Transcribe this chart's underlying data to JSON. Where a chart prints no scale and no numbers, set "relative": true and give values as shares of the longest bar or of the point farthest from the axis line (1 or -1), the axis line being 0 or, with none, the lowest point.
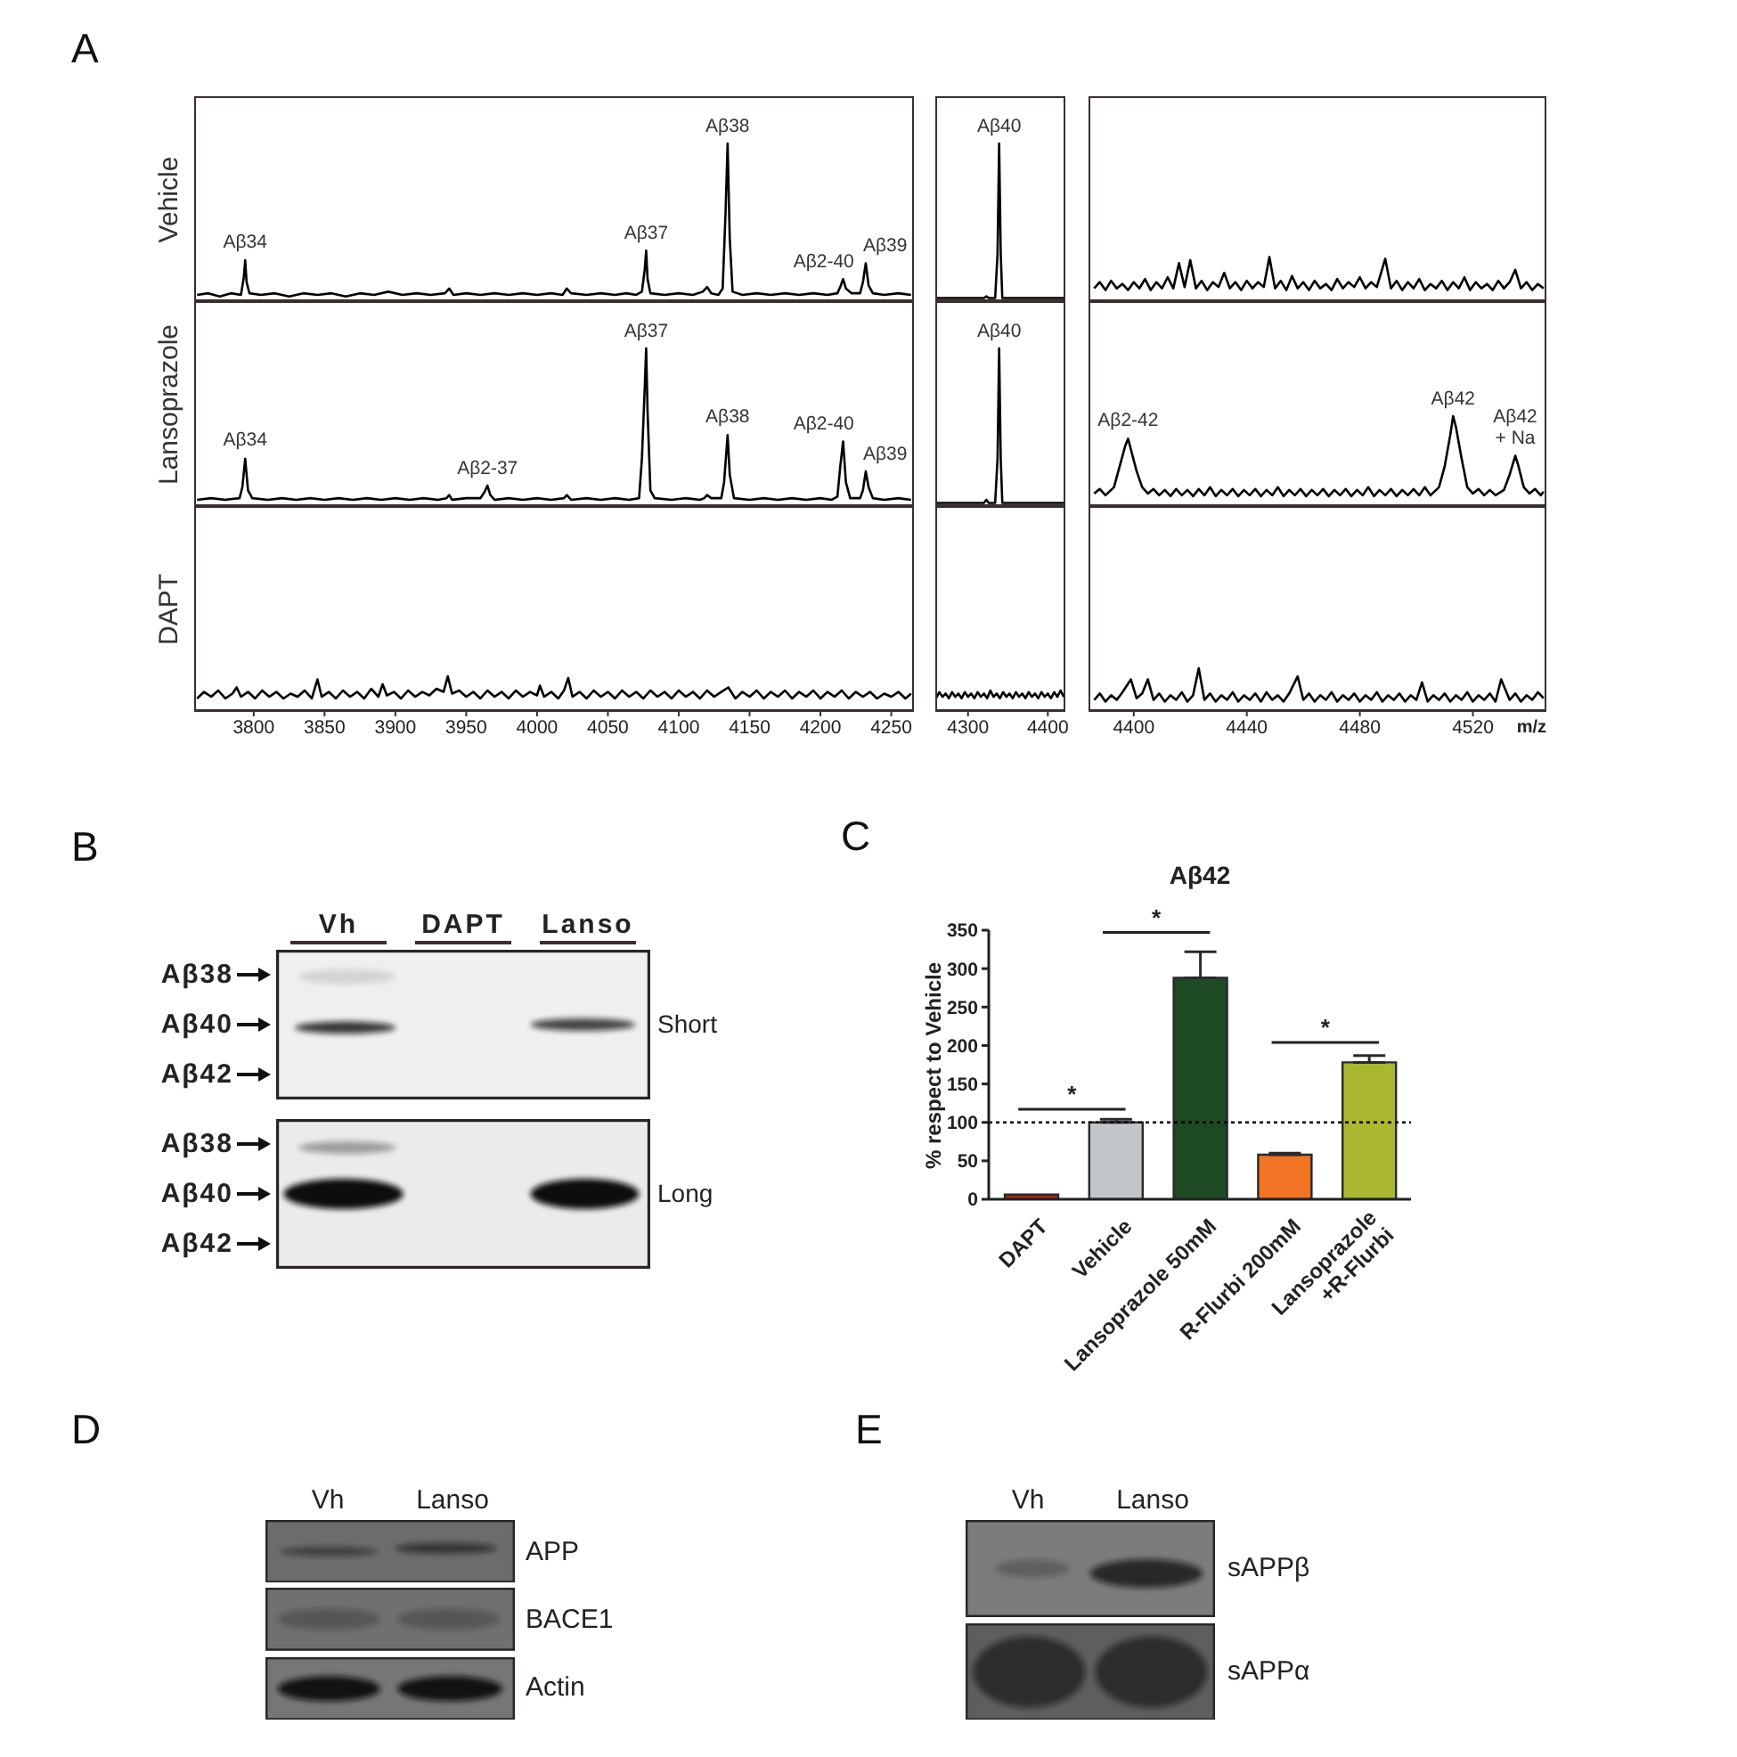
{
  "chart_data": [
    {
      "type": "line",
      "relative": true,
      "color": "#000000",
      "ylabel": "Vehicle",
      "tick_labels": false,
      "xlim": [
        3758,
        4266
      ],
      "x": [
        3760,
        3768,
        3776,
        3784,
        3791,
        3793,
        3794,
        3795,
        3797,
        3805,
        3815,
        3825,
        3835,
        3845,
        3855,
        3865,
        3875,
        3885,
        3895,
        3905,
        3915,
        3925,
        3935,
        3938,
        3941,
        3950,
        3960,
        3970,
        3980,
        3990,
        4000,
        4010,
        4018,
        4021,
        4024,
        4035,
        4045,
        4055,
        4063,
        4070,
        4074,
        4076,
        4077,
        4078,
        4080,
        4090,
        4100,
        4110,
        4117,
        4120,
        4123,
        4128,
        4131,
        4133,
        4134.5,
        4136,
        4138,
        4145,
        4155,
        4165,
        4175,
        4185,
        4195,
        4205,
        4212,
        4214,
        4216,
        4218,
        4222,
        4228,
        4230,
        4232,
        4234,
        4237,
        4245,
        4255,
        4264
      ],
      "values": [
        0.04,
        0.05,
        0.03,
        0.05,
        0.04,
        0.15,
        0.26,
        0.12,
        0.05,
        0.04,
        0.05,
        0.03,
        0.05,
        0.04,
        0.05,
        0.03,
        0.05,
        0.04,
        0.06,
        0.04,
        0.05,
        0.04,
        0.05,
        0.08,
        0.04,
        0.05,
        0.04,
        0.05,
        0.04,
        0.05,
        0.04,
        0.05,
        0.04,
        0.08,
        0.05,
        0.04,
        0.05,
        0.04,
        0.05,
        0.04,
        0.06,
        0.2,
        0.32,
        0.14,
        0.05,
        0.04,
        0.05,
        0.04,
        0.06,
        0.09,
        0.05,
        0.04,
        0.08,
        0.55,
        1.0,
        0.4,
        0.06,
        0.04,
        0.05,
        0.04,
        0.05,
        0.04,
        0.05,
        0.04,
        0.05,
        0.09,
        0.14,
        0.08,
        0.05,
        0.05,
        0.12,
        0.24,
        0.1,
        0.05,
        0.04,
        0.05,
        0.04
      ],
      "annotations": [
        "A",
        {
          "text": "Aβ34",
          "x": 3794,
          "y": 0.26
        },
        {
          "text": "Aβ37",
          "x": 4077,
          "y": 0.32
        },
        {
          "text": "Aβ38",
          "x": 4134.5,
          "y": 1.0
        },
        {
          "text": "Aβ2-40",
          "x": 4216,
          "y": 0.14
        },
        {
          "text": "Aβ39",
          "x": 4232,
          "y": 0.24
        }
      ]
    },
    {
      "type": "line",
      "relative": true,
      "color": "#000000",
      "tick_labels": false,
      "xlim": [
        4259,
        4422
      ],
      "x": [
        4260,
        4270,
        4280,
        4290,
        4300,
        4310,
        4320,
        4323,
        4326,
        4334,
        4337,
        4339,
        4341,
        4343,
        4350,
        4360,
        4370,
        4380,
        4390,
        4400,
        4410,
        4420
      ],
      "values": [
        0.02,
        0.02,
        0.02,
        0.02,
        0.02,
        0.02,
        0.02,
        0.03,
        0.02,
        0.02,
        0.3,
        1.0,
        0.3,
        0.02,
        0.02,
        0.02,
        0.02,
        0.02,
        0.02,
        0.02,
        0.02,
        0.02
      ],
      "annotations": [
        {
          "text": "Aβ40",
          "x": 4339,
          "y": 1.0
        }
      ]
    },
    {
      "type": "line",
      "relative": true,
      "color": "#000000",
      "tick_labels": false,
      "xlim": [
        4384,
        4546
      ],
      "x": [
        4386,
        4388,
        4390,
        4392,
        4394,
        4396,
        4398,
        4400,
        4402,
        4404,
        4406,
        4408,
        4410,
        4412,
        4414,
        4416,
        4418,
        4420,
        4422,
        4424,
        4426,
        4428,
        4430,
        4432,
        4434,
        4436,
        4438,
        4440,
        4442,
        4444,
        4446,
        4448,
        4450,
        4452,
        4454,
        4456,
        4458,
        4460,
        4462,
        4464,
        4466,
        4468,
        4470,
        4472,
        4474,
        4476,
        4478,
        4480,
        4482,
        4484,
        4486,
        4489,
        4491,
        4493,
        4495,
        4497,
        4499,
        4501,
        4503,
        4505,
        4507,
        4509,
        4511,
        4513,
        4515,
        4517,
        4519,
        4521,
        4523,
        4525,
        4527,
        4529,
        4531,
        4533,
        4535,
        4537,
        4539,
        4541,
        4543,
        4545
      ],
      "values": [
        0.29,
        0.43,
        0.25,
        0.46,
        0.29,
        0.39,
        0.25,
        0.43,
        0.29,
        0.5,
        0.25,
        0.43,
        0.29,
        0.54,
        0.29,
        0.86,
        0.32,
        0.93,
        0.29,
        0.46,
        0.25,
        0.43,
        0.32,
        0.64,
        0.29,
        0.43,
        0.25,
        0.46,
        0.29,
        0.43,
        0.32,
        1.0,
        0.29,
        0.46,
        0.25,
        0.57,
        0.29,
        0.43,
        0.25,
        0.46,
        0.29,
        0.39,
        0.25,
        0.5,
        0.29,
        0.43,
        0.32,
        0.54,
        0.29,
        0.43,
        0.32,
        0.96,
        0.29,
        0.46,
        0.25,
        0.43,
        0.29,
        0.5,
        0.25,
        0.39,
        0.29,
        0.46,
        0.25,
        0.43,
        0.29,
        0.54,
        0.25,
        0.43,
        0.29,
        0.39,
        0.25,
        0.46,
        0.29,
        0.43,
        0.71,
        0.29,
        0.43,
        0.25,
        0.39,
        0.29
      ]
    },
    {
      "type": "line",
      "relative": true,
      "color": "#000000",
      "ylabel": "Lansoprazole",
      "tick_labels": false,
      "xlim": [
        3758,
        4266
      ],
      "x": [
        3760,
        3770,
        3780,
        3790,
        3792,
        3794,
        3796,
        3799,
        3810,
        3820,
        3830,
        3840,
        3850,
        3860,
        3870,
        3880,
        3890,
        3900,
        3910,
        3920,
        3930,
        3936,
        3938,
        3940,
        3950,
        3960,
        3963,
        3965,
        3967,
        3970,
        3980,
        3990,
        4000,
        4010,
        4019,
        4021,
        4024,
        4035,
        4045,
        4055,
        4065,
        4072,
        4074,
        4076,
        4077,
        4078,
        4080,
        4083,
        4095,
        4105,
        4115,
        4118,
        4120,
        4123,
        4130,
        4132,
        4134.5,
        4136,
        4139,
        4150,
        4160,
        4170,
        4180,
        4190,
        4200,
        4208,
        4212,
        4214,
        4216,
        4218,
        4221,
        4228,
        4230,
        4232,
        4234,
        4237,
        4245,
        4255,
        4264
      ],
      "values": [
        0.04,
        0.05,
        0.04,
        0.05,
        0.12,
        0.3,
        0.1,
        0.05,
        0.04,
        0.05,
        0.04,
        0.05,
        0.04,
        0.05,
        0.04,
        0.05,
        0.04,
        0.05,
        0.04,
        0.05,
        0.04,
        0.05,
        0.07,
        0.04,
        0.05,
        0.05,
        0.09,
        0.13,
        0.07,
        0.04,
        0.05,
        0.04,
        0.05,
        0.04,
        0.05,
        0.07,
        0.04,
        0.05,
        0.04,
        0.05,
        0.04,
        0.05,
        0.3,
        0.75,
        1.0,
        0.6,
        0.1,
        0.05,
        0.04,
        0.05,
        0.04,
        0.05,
        0.07,
        0.05,
        0.05,
        0.15,
        0.45,
        0.2,
        0.05,
        0.04,
        0.05,
        0.04,
        0.05,
        0.04,
        0.05,
        0.04,
        0.06,
        0.25,
        0.41,
        0.15,
        0.05,
        0.05,
        0.1,
        0.22,
        0.12,
        0.05,
        0.04,
        0.05,
        0.04
      ],
      "annotations": [
        {
          "text": "Aβ34",
          "x": 3794,
          "y": 0.3
        },
        {
          "text": "Aβ2-37",
          "x": 3965,
          "y": 0.13
        },
        {
          "text": "Aβ37",
          "x": 4077,
          "y": 1.0
        },
        {
          "text": "Aβ38",
          "x": 4134.5,
          "y": 0.45
        },
        {
          "text": "Aβ2-40",
          "x": 4216,
          "y": 0.41
        },
        {
          "text": "Aβ39",
          "x": 4232,
          "y": 0.22
        }
      ]
    },
    {
      "type": "line",
      "relative": true,
      "color": "#000000",
      "tick_labels": false,
      "xlim": [
        4259,
        4422
      ],
      "x": [
        4260,
        4270,
        4280,
        4290,
        4300,
        4310,
        4320,
        4323,
        4326,
        4334,
        4337,
        4339,
        4341,
        4343,
        4350,
        4360,
        4370,
        4380,
        4390,
        4400,
        4410,
        4420
      ],
      "values": [
        0.02,
        0.02,
        0.02,
        0.02,
        0.02,
        0.02,
        0.02,
        0.04,
        0.02,
        0.02,
        0.3,
        1.0,
        0.3,
        0.02,
        0.02,
        0.02,
        0.02,
        0.02,
        0.02,
        0.02,
        0.02,
        0.02
      ],
      "annotations": [
        {
          "text": "Aβ40",
          "x": 4339,
          "y": 1.0
        }
      ]
    },
    {
      "type": "line",
      "relative": true,
      "color": "#000000",
      "tick_labels": false,
      "xlim": [
        4384,
        4546
      ],
      "x": [
        4386,
        4388,
        4390,
        4392,
        4393,
        4395,
        4397,
        4398,
        4399,
        4401,
        4403,
        4405,
        4407,
        4409,
        4411,
        4413,
        4415,
        4417,
        4419,
        4421,
        4423,
        4425,
        4427,
        4429,
        4431,
        4433,
        4435,
        4437,
        4439,
        4441,
        4443,
        4445,
        4447,
        4449,
        4451,
        4453,
        4455,
        4457,
        4459,
        4461,
        4463,
        4465,
        4467,
        4469,
        4471,
        4473,
        4475,
        4477,
        4479,
        4481,
        4483,
        4485,
        4487,
        4489,
        4491,
        4493,
        4495,
        4497,
        4499,
        4501,
        4503,
        4505,
        4508,
        4510,
        4512,
        4513,
        4514,
        4516,
        4518,
        4520,
        4522,
        4524,
        4526,
        4528,
        4531,
        4533,
        4535,
        4536,
        4538,
        4540,
        4542,
        4544,
        4545
      ],
      "values": [
        0.14,
        0.19,
        0.12,
        0.18,
        0.21,
        0.44,
        0.67,
        0.75,
        0.63,
        0.39,
        0.21,
        0.14,
        0.19,
        0.12,
        0.18,
        0.11,
        0.19,
        0.12,
        0.18,
        0.11,
        0.19,
        0.12,
        0.21,
        0.11,
        0.18,
        0.12,
        0.19,
        0.11,
        0.18,
        0.12,
        0.19,
        0.11,
        0.18,
        0.12,
        0.21,
        0.11,
        0.18,
        0.12,
        0.19,
        0.11,
        0.18,
        0.12,
        0.19,
        0.11,
        0.18,
        0.12,
        0.19,
        0.11,
        0.18,
        0.12,
        0.21,
        0.11,
        0.18,
        0.12,
        0.19,
        0.11,
        0.18,
        0.12,
        0.19,
        0.12,
        0.21,
        0.12,
        0.21,
        0.44,
        0.79,
        1.0,
        0.88,
        0.53,
        0.21,
        0.14,
        0.19,
        0.12,
        0.18,
        0.12,
        0.18,
        0.35,
        0.56,
        0.46,
        0.21,
        0.14,
        0.19,
        0.12,
        0.16
      ],
      "annotations": [
        {
          "text": "Aβ2-42",
          "x": 4398,
          "y": 0.75
        },
        {
          "text": "Aβ42",
          "x": 4513,
          "y": 1.0
        },
        {
          "text": "Aβ42\n+ Na",
          "x": 4535,
          "y": 0.56
        }
      ]
    },
    {
      "type": "line",
      "relative": true,
      "color": "#000000",
      "ylabel": "DAPT",
      "tick_labels": "x",
      "xlim": [
        3758,
        4266
      ],
      "xticks": [
        3800,
        3850,
        3900,
        3950,
        4000,
        4050,
        4100,
        4150,
        4200,
        4250
      ],
      "x": [
        3760,
        3765,
        3770,
        3775,
        3780,
        3785,
        3788,
        3791,
        3796,
        3801,
        3806,
        3811,
        3816,
        3821,
        3826,
        3831,
        3836,
        3841,
        3845,
        3848,
        3853,
        3858,
        3863,
        3868,
        3873,
        3878,
        3883,
        3888,
        3891,
        3894,
        3899,
        3904,
        3909,
        3914,
        3919,
        3924,
        3929,
        3934,
        3937,
        3940,
        3945,
        3950,
        3955,
        3960,
        3965,
        3970,
        3975,
        3980,
        3985,
        3990,
        3995,
        4000,
        4002,
        4005,
        4010,
        4015,
        4019,
        4022,
        4025,
        4030,
        4035,
        4040,
        4045,
        4050,
        4055,
        4060,
        4065,
        4070,
        4075,
        4080,
        4085,
        4090,
        4095,
        4100,
        4105,
        4110,
        4115,
        4120,
        4125,
        4130,
        4135,
        4140,
        4145,
        4150,
        4155,
        4160,
        4165,
        4170,
        4175,
        4180,
        4185,
        4190,
        4195,
        4200,
        4205,
        4210,
        4215,
        4220,
        4225,
        4230,
        4235,
        4240,
        4245,
        4250,
        4255,
        4260,
        4264
      ],
      "values": [
        0.36,
        0.55,
        0.41,
        0.59,
        0.36,
        0.5,
        0.68,
        0.41,
        0.55,
        0.36,
        0.59,
        0.41,
        0.55,
        0.36,
        0.5,
        0.41,
        0.59,
        0.36,
        0.91,
        0.41,
        0.55,
        0.36,
        0.59,
        0.41,
        0.55,
        0.36,
        0.64,
        0.41,
        0.77,
        0.45,
        0.55,
        0.36,
        0.59,
        0.41,
        0.55,
        0.45,
        0.64,
        0.55,
        1.0,
        0.5,
        0.59,
        0.41,
        0.55,
        0.36,
        0.59,
        0.41,
        0.55,
        0.36,
        0.59,
        0.41,
        0.55,
        0.45,
        0.73,
        0.41,
        0.55,
        0.36,
        0.59,
        0.95,
        0.41,
        0.55,
        0.36,
        0.59,
        0.41,
        0.55,
        0.36,
        0.59,
        0.41,
        0.55,
        0.36,
        0.59,
        0.41,
        0.55,
        0.36,
        0.59,
        0.41,
        0.55,
        0.36,
        0.59,
        0.41,
        0.55,
        0.68,
        0.36,
        0.55,
        0.41,
        0.59,
        0.36,
        0.55,
        0.41,
        0.59,
        0.36,
        0.55,
        0.41,
        0.59,
        0.36,
        0.55,
        0.41,
        0.59,
        0.36,
        0.55,
        0.41,
        0.55,
        0.36,
        0.5,
        0.41,
        0.55,
        0.36,
        0.5
      ]
    },
    {
      "type": "line",
      "relative": true,
      "color": "#000000",
      "tick_labels": "x",
      "xlim": [
        4259,
        4422
      ],
      "xticks": [
        4300,
        4400
      ],
      "x": [
        4260,
        4264,
        4268,
        4272,
        4276,
        4280,
        4284,
        4288,
        4292,
        4296,
        4300,
        4304,
        4308,
        4312,
        4316,
        4320,
        4324,
        4328,
        4332,
        4336,
        4340,
        4344,
        4348,
        4352,
        4356,
        4360,
        4364,
        4368,
        4372,
        4376,
        4380,
        4384,
        4388,
        4392,
        4396,
        4400,
        4404,
        4408,
        4412,
        4416,
        4420
      ],
      "values": [
        0.62,
        0.92,
        0.69,
        0.85,
        0.62,
        0.92,
        0.69,
        0.85,
        0.62,
        0.92,
        0.69,
        0.85,
        0.62,
        0.92,
        0.69,
        0.85,
        0.62,
        1.0,
        0.69,
        0.85,
        0.62,
        0.92,
        0.69,
        0.85,
        0.62,
        0.92,
        0.69,
        0.85,
        0.62,
        0.92,
        0.69,
        0.85,
        0.62,
        0.92,
        0.69,
        0.85,
        0.62,
        0.92,
        0.69,
        1.0,
        0.69
      ]
    },
    {
      "type": "line",
      "relative": true,
      "color": "#000000",
      "tick_labels": "x",
      "xlabel": "m/z",
      "xlim": [
        4384,
        4546
      ],
      "xticks": [
        4400,
        4440,
        4480,
        4520
      ],
      "x": [
        4386,
        4388,
        4390,
        4392,
        4394,
        4396,
        4399,
        4401,
        4403,
        4405,
        4407,
        4409,
        4411,
        4413,
        4415,
        4417,
        4419,
        4421,
        4423,
        4425,
        4427,
        4429,
        4431,
        4433,
        4435,
        4437,
        4439,
        4441,
        4443,
        4445,
        4447,
        4449,
        4451,
        4453,
        4455,
        4458,
        4460,
        4462,
        4464,
        4466,
        4468,
        4470,
        4472,
        4474,
        4476,
        4478,
        4480,
        4482,
        4484,
        4486,
        4488,
        4490,
        4492,
        4494,
        4496,
        4498,
        4500,
        4502,
        4504,
        4506,
        4508,
        4510,
        4512,
        4514,
        4516,
        4518,
        4520,
        4522,
        4524,
        4526,
        4528,
        4530,
        4533,
        4535,
        4537,
        4539,
        4541,
        4543,
        4545
      ],
      "values": [
        0.26,
        0.41,
        0.22,
        0.37,
        0.26,
        0.44,
        0.74,
        0.3,
        0.41,
        0.74,
        0.26,
        0.41,
        0.22,
        0.37,
        0.26,
        0.44,
        0.22,
        0.37,
        1.0,
        0.26,
        0.41,
        0.22,
        0.37,
        0.26,
        0.44,
        0.22,
        0.37,
        0.26,
        0.41,
        0.22,
        0.44,
        0.26,
        0.37,
        0.22,
        0.41,
        0.81,
        0.26,
        0.41,
        0.22,
        0.37,
        0.26,
        0.44,
        0.22,
        0.37,
        0.26,
        0.41,
        0.22,
        0.37,
        0.26,
        0.44,
        0.22,
        0.37,
        0.26,
        0.41,
        0.22,
        0.37,
        0.26,
        0.67,
        0.22,
        0.37,
        0.26,
        0.41,
        0.22,
        0.37,
        0.26,
        0.44,
        0.22,
        0.37,
        0.26,
        0.41,
        0.22,
        0.74,
        0.26,
        0.41,
        0.22,
        0.37,
        0.26,
        0.44,
        0.3
      ]
    },
    {
      "type": "other",
      "annotations": [
        "B"
      ],
      "categories": [
        "Vh",
        "DAPT",
        "Lanso"
      ],
      "y_categories": [
        "Aβ38",
        "Aβ40",
        "Aβ42",
        "Aβ38",
        "Aβ40",
        "Aβ42"
      ],
      "y2_categories": [
        "Short",
        "Long"
      ]
    },
    {
      "type": "bar",
      "title": "Aβ42",
      "ylabel": "% respect to Vehicle",
      "categories": [
        "DAPT",
        "Vehicle",
        "Lansoprazole 50mM",
        "R-Flurbi 200mM",
        "Lansoprazole\n+R-Flurbi"
      ],
      "values": [
        6,
        100,
        288,
        58,
        178
      ],
      "colors": [
        "#b3241c",
        "#c2c6cb",
        "#1d4a22",
        "#f07424",
        "#a9b82f"
      ],
      "errors": [
        null,
        [
          100,
          104
        ],
        [
          288,
          322
        ],
        [
          58,
          60
        ],
        [
          178,
          187
        ]
      ],
      "ylim": [
        0,
        350
      ],
      "yticks": [
        0,
        50,
        100,
        150,
        200,
        250,
        300,
        350
      ],
      "ref_lines": [
        {
          "axis": "y",
          "value": 100,
          "line_style": "dotted",
          "color": "#000000"
        }
      ],
      "annotations": [
        "C",
        "*",
        "*",
        "*"
      ]
    },
    {
      "type": "other",
      "annotations": [
        "D"
      ],
      "categories": [
        "Vh",
        "Lanso"
      ],
      "y2_categories": [
        "APP",
        "BACE1",
        "Actin"
      ]
    },
    {
      "type": "other",
      "annotations": [
        "E"
      ],
      "categories": [
        "Vh",
        "Lanso"
      ],
      "y2_categories": [
        "sAPPβ",
        "sAPPα"
      ]
    }
  ]
}
